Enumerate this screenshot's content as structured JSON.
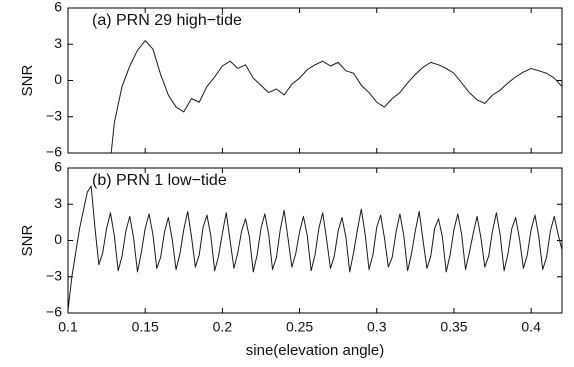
{
  "chart_data": [
    {
      "type": "line",
      "annotation": "(a) PRN 29 high−tide",
      "ylabel": "SNR",
      "xlim": [
        0.1,
        0.42
      ],
      "ylim": [
        -6,
        6
      ],
      "yticks": [
        {
          "value": -6,
          "label": "−6"
        },
        {
          "value": -3,
          "label": "−3"
        },
        0,
        3,
        6
      ],
      "color": "#1a1a1a",
      "x": [
        0.128,
        0.13,
        0.135,
        0.14,
        0.145,
        0.15,
        0.155,
        0.16,
        0.165,
        0.17,
        0.175,
        0.18,
        0.185,
        0.19,
        0.195,
        0.2,
        0.205,
        0.21,
        0.215,
        0.22,
        0.225,
        0.23,
        0.235,
        0.24,
        0.245,
        0.25,
        0.255,
        0.26,
        0.265,
        0.27,
        0.275,
        0.28,
        0.285,
        0.29,
        0.295,
        0.3,
        0.305,
        0.31,
        0.315,
        0.32,
        0.325,
        0.33,
        0.335,
        0.34,
        0.345,
        0.35,
        0.355,
        0.36,
        0.365,
        0.37,
        0.375,
        0.38,
        0.385,
        0.39,
        0.395,
        0.4,
        0.405,
        0.41,
        0.415,
        0.42
      ],
      "values": [
        -6,
        -3.5,
        -0.5,
        1.2,
        2.5,
        3.3,
        2.6,
        0.5,
        -1.2,
        -2.2,
        -2.6,
        -1.5,
        -1.8,
        -0.5,
        0.3,
        1.2,
        1.6,
        1.0,
        1.3,
        0.2,
        -0.4,
        -1.0,
        -0.7,
        -1.2,
        -0.3,
        0.2,
        0.9,
        1.3,
        1.6,
        1.2,
        1.5,
        0.8,
        0.6,
        -0.4,
        -1.0,
        -1.8,
        -2.2,
        -1.5,
        -1.0,
        -0.2,
        0.5,
        1.1,
        1.5,
        1.3,
        1.0,
        0.6,
        -0.2,
        -1.0,
        -1.6,
        -1.9,
        -1.2,
        -0.8,
        -0.2,
        0.3,
        0.7,
        1.0,
        0.8,
        0.6,
        0.2,
        -0.5
      ]
    },
    {
      "type": "line",
      "annotation": "(b) PRN 1 low−tide",
      "ylabel": "SNR",
      "xlabel": "sine(elevation angle)",
      "xlim": [
        0.1,
        0.42
      ],
      "xticks": [
        0.1,
        0.15,
        0.2,
        0.25,
        0.3,
        0.35,
        0.4
      ],
      "ylim": [
        -6,
        6
      ],
      "yticks": [
        {
          "value": -6,
          "label": "−6"
        },
        {
          "value": -3,
          "label": "−3"
        },
        0,
        3,
        6
      ],
      "color": "#1a1a1a",
      "x": [
        0.1,
        0.1025,
        0.105,
        0.1075,
        0.11,
        0.1125,
        0.115,
        0.1175,
        0.12,
        0.1225,
        0.125,
        0.1275,
        0.13,
        0.1325,
        0.135,
        0.1375,
        0.14,
        0.1425,
        0.145,
        0.1475,
        0.15,
        0.1525,
        0.155,
        0.1575,
        0.16,
        0.1625,
        0.165,
        0.1675,
        0.17,
        0.1725,
        0.175,
        0.1775,
        0.18,
        0.1825,
        0.185,
        0.1875,
        0.19,
        0.1925,
        0.195,
        0.1975,
        0.2,
        0.2025,
        0.205,
        0.2075,
        0.21,
        0.2125,
        0.215,
        0.2175,
        0.22,
        0.2225,
        0.225,
        0.2275,
        0.23,
        0.2325,
        0.235,
        0.2375,
        0.24,
        0.2425,
        0.245,
        0.2475,
        0.25,
        0.2525,
        0.255,
        0.2575,
        0.26,
        0.2625,
        0.265,
        0.2675,
        0.27,
        0.2725,
        0.275,
        0.2775,
        0.28,
        0.2825,
        0.285,
        0.2875,
        0.29,
        0.2925,
        0.295,
        0.2975,
        0.3,
        0.3025,
        0.305,
        0.3075,
        0.31,
        0.3125,
        0.315,
        0.3175,
        0.32,
        0.3225,
        0.325,
        0.3275,
        0.33,
        0.3325,
        0.335,
        0.3375,
        0.34,
        0.3425,
        0.345,
        0.3475,
        0.35,
        0.3525,
        0.355,
        0.3575,
        0.36,
        0.3625,
        0.365,
        0.3675,
        0.37,
        0.3725,
        0.375,
        0.3775,
        0.38,
        0.3825,
        0.385,
        0.3875,
        0.39,
        0.3925,
        0.395,
        0.3975,
        0.4,
        0.4025,
        0.405,
        0.4075,
        0.41,
        0.4125,
        0.415,
        0.4175,
        0.42
      ],
      "values": [
        -5.8,
        -3,
        -1,
        1,
        2.5,
        4,
        4.5,
        1,
        -2,
        -1,
        1,
        2.3,
        0.4,
        -2.5,
        -1.3,
        0.8,
        2.0,
        0.2,
        -2.6,
        -1.0,
        1.0,
        2.2,
        0.5,
        -2.3,
        -1.4,
        0.7,
        1.9,
        0.1,
        -2.4,
        -1.1,
        0.9,
        2.4,
        0.3,
        -2.2,
        -1.2,
        1.1,
        2.1,
        0.4,
        -2.5,
        -1.3,
        0.6,
        2.3,
        0.0,
        -2.3,
        -1.0,
        0.8,
        1.8,
        0.3,
        -2.6,
        -1.2,
        1.0,
        2.2,
        0.5,
        -2.4,
        -1.4,
        0.9,
        2.5,
        0.2,
        -2.2,
        -1.1,
        0.7,
        2.0,
        0.4,
        -2.5,
        -1.2,
        1.0,
        2.3,
        0.1,
        -2.3,
        -1.3,
        0.8,
        1.9,
        0.3,
        -2.6,
        -1.0,
        0.9,
        2.6,
        0.5,
        -2.4,
        -1.2,
        1.1,
        2.1,
        0.2,
        -2.2,
        -1.4,
        0.7,
        2.2,
        0.4,
        -2.5,
        -1.1,
        0.8,
        2.4,
        0.0,
        -2.3,
        -1.3,
        1.0,
        1.8,
        0.3,
        -2.6,
        -1.2,
        0.9,
        2.2,
        0.5,
        -2.4,
        -1.0,
        0.6,
        2.0,
        0.2,
        -2.2,
        -1.3,
        0.8,
        2.3,
        0.4,
        -2.5,
        -1.1,
        1.0,
        1.9,
        0.1,
        -2.3,
        -1.2,
        0.9,
        2.1,
        0.3,
        -2.4,
        -1.4,
        0.8,
        2.0,
        0.5,
        -0.8
      ]
    }
  ]
}
